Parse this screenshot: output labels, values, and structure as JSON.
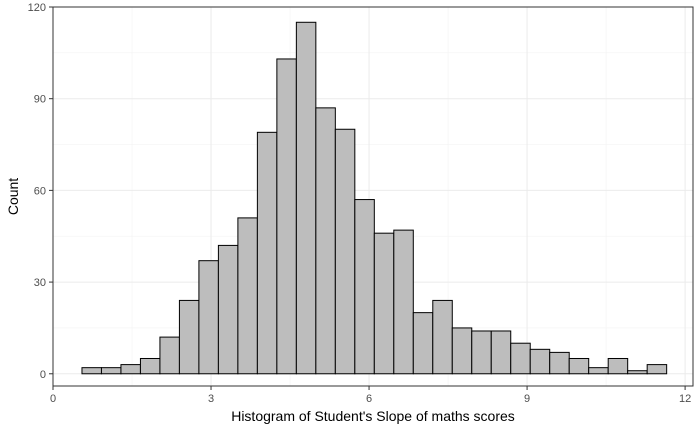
{
  "chart_data": {
    "type": "bar",
    "title": "",
    "xlabel": "Histogram of Student's Slope of maths scores",
    "ylabel": "Count",
    "xlim": [
      0,
      12.15
    ],
    "ylim": [
      -4,
      120
    ],
    "x_ticks": [
      0,
      3,
      6,
      9,
      12
    ],
    "y_ticks": [
      0,
      30,
      60,
      90,
      120
    ],
    "grid": true,
    "bin_width": 0.37,
    "bins": [
      {
        "x0": 0.55,
        "x1": 0.92,
        "count": 2
      },
      {
        "x0": 0.92,
        "x1": 1.29,
        "count": 2
      },
      {
        "x0": 1.29,
        "x1": 1.66,
        "count": 3
      },
      {
        "x0": 1.66,
        "x1": 2.03,
        "count": 5
      },
      {
        "x0": 2.03,
        "x1": 2.4,
        "count": 12
      },
      {
        "x0": 2.4,
        "x1": 2.77,
        "count": 24
      },
      {
        "x0": 2.77,
        "x1": 3.14,
        "count": 37
      },
      {
        "x0": 3.14,
        "x1": 3.51,
        "count": 42
      },
      {
        "x0": 3.51,
        "x1": 3.88,
        "count": 51
      },
      {
        "x0": 3.88,
        "x1": 4.25,
        "count": 79
      },
      {
        "x0": 4.25,
        "x1": 4.62,
        "count": 103
      },
      {
        "x0": 4.62,
        "x1": 4.99,
        "count": 115
      },
      {
        "x0": 4.99,
        "x1": 5.36,
        "count": 87
      },
      {
        "x0": 5.36,
        "x1": 5.73,
        "count": 80
      },
      {
        "x0": 5.73,
        "x1": 6.1,
        "count": 57
      },
      {
        "x0": 6.1,
        "x1": 6.47,
        "count": 46
      },
      {
        "x0": 6.47,
        "x1": 6.84,
        "count": 47
      },
      {
        "x0": 6.84,
        "x1": 7.21,
        "count": 20
      },
      {
        "x0": 7.21,
        "x1": 7.58,
        "count": 24
      },
      {
        "x0": 7.58,
        "x1": 7.95,
        "count": 15
      },
      {
        "x0": 7.95,
        "x1": 8.32,
        "count": 14
      },
      {
        "x0": 8.32,
        "x1": 8.69,
        "count": 14
      },
      {
        "x0": 8.69,
        "x1": 9.06,
        "count": 10
      },
      {
        "x0": 9.06,
        "x1": 9.43,
        "count": 8
      },
      {
        "x0": 9.43,
        "x1": 9.8,
        "count": 7
      },
      {
        "x0": 9.8,
        "x1": 10.17,
        "count": 5
      },
      {
        "x0": 10.17,
        "x1": 10.54,
        "count": 2
      },
      {
        "x0": 10.54,
        "x1": 10.91,
        "count": 5
      },
      {
        "x0": 10.91,
        "x1": 11.28,
        "count": 1
      },
      {
        "x0": 11.28,
        "x1": 11.65,
        "count": 3
      }
    ],
    "colors": {
      "bar_fill": "#bdbdbd",
      "bar_stroke": "#000000",
      "panel_background": "#ffffff",
      "grid": "#ebebeb"
    }
  }
}
